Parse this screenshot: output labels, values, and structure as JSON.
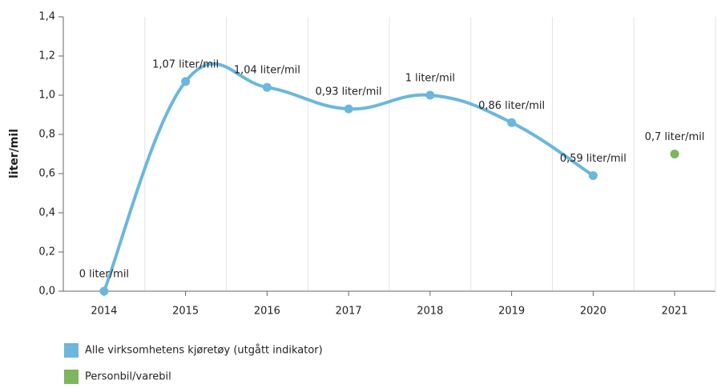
{
  "chart_data": {
    "type": "line",
    "y_label": "liter/mil",
    "categories": [
      "2014",
      "2015",
      "2016",
      "2017",
      "2018",
      "2019",
      "2020",
      "2021"
    ],
    "series": [
      {
        "name": "Alle virksomhetens kjøretøy (utgått indikator)",
        "color": "#6bb7dd",
        "smooth": true,
        "values": [
          0,
          1.07,
          1.04,
          0.93,
          1,
          0.86,
          0.59,
          null
        ],
        "value_labels": [
          "0 liter/mil",
          "1,07 liter/mil",
          "1,04 liter/mil",
          "0,93 liter/mil",
          "1 liter/mil",
          "0,86 liter/mil",
          "0,59 liter/mil",
          null
        ]
      },
      {
        "name": "Personbil/varebil",
        "color": "#7cb65e",
        "smooth": true,
        "values": [
          null,
          null,
          null,
          null,
          null,
          null,
          null,
          0.7
        ],
        "value_labels": [
          null,
          null,
          null,
          null,
          null,
          null,
          null,
          "0,7 liter/mil"
        ]
      }
    ],
    "ylim": [
      0,
      1.4
    ],
    "yticks": [
      {
        "value": 0,
        "label": "0,0"
      },
      {
        "value": 0.2,
        "label": "0,2"
      },
      {
        "value": 0.4,
        "label": "0,4"
      },
      {
        "value": 0.6,
        "label": "0,6"
      },
      {
        "value": 0.8,
        "label": "0,8"
      },
      {
        "value": 1,
        "label": "1,0"
      },
      {
        "value": 1.2,
        "label": "1,2"
      },
      {
        "value": 1.4,
        "label": "1,4"
      }
    ],
    "grid": "x"
  }
}
